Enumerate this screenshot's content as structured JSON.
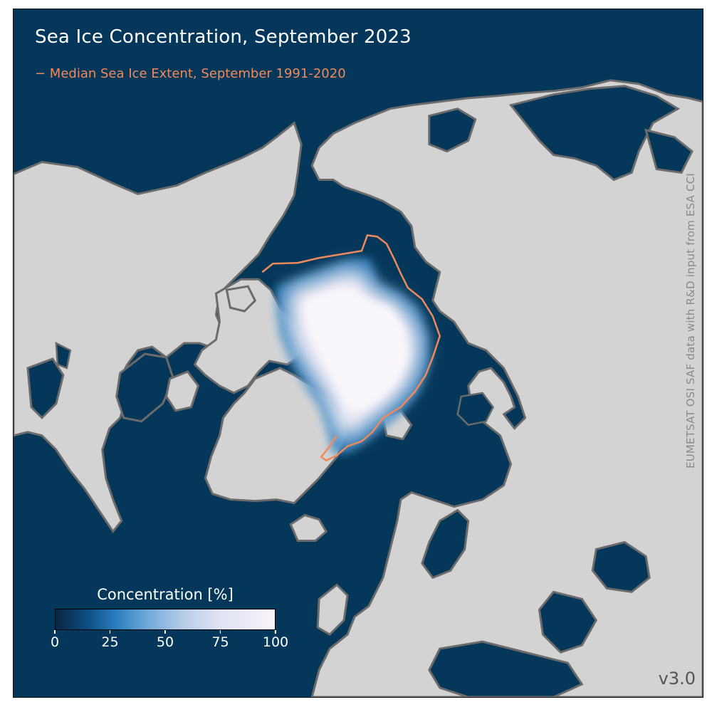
{
  "title": "Sea Ice Concentration, September 2023",
  "legend": {
    "median_line_label": "− Median Sea Ice Extent, September 1991-2020"
  },
  "credit": "EUMETSAT OSI SAF data with R&D input from ESA CCI",
  "version": "v3.0",
  "colorbar": {
    "title": "Concentration [%]",
    "ticks": [
      "0",
      "25",
      "50",
      "75",
      "100"
    ],
    "tick_values": [
      0,
      25,
      50,
      75,
      100
    ]
  },
  "colors": {
    "ocean": "#04375a",
    "land": "#d3d3d3",
    "coastline": "#6b6b6b",
    "ice": "#f3eef6",
    "median_line": "#f08a5d"
  }
}
